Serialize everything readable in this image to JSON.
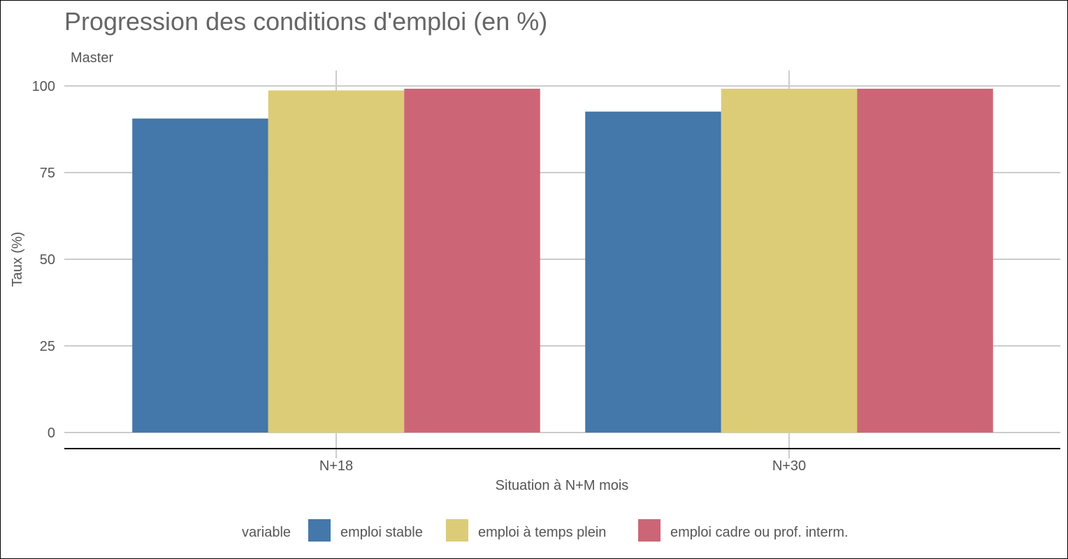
{
  "chart_data": {
    "type": "bar",
    "title": "Progression des conditions d'emploi (en %)",
    "subtitle": "Master",
    "xlabel": "Situation à N+M mois",
    "ylabel": "Taux (%)",
    "categories": [
      "N+18",
      "N+30"
    ],
    "ylim": [
      0,
      100
    ],
    "yticks": [
      0,
      25,
      50,
      75,
      100
    ],
    "grid": true,
    "legend_title": "variable",
    "legend_position": "bottom",
    "series": [
      {
        "name": "emploi stable",
        "color": "#4477AA",
        "values": [
          90.6,
          92.6
        ]
      },
      {
        "name": "emploi à temps plein",
        "color": "#DDCC77",
        "values": [
          98.7,
          99.2
        ]
      },
      {
        "name": "emploi cadre ou prof. interm.",
        "color": "#CC6677",
        "values": [
          99.2,
          99.2
        ]
      }
    ]
  }
}
